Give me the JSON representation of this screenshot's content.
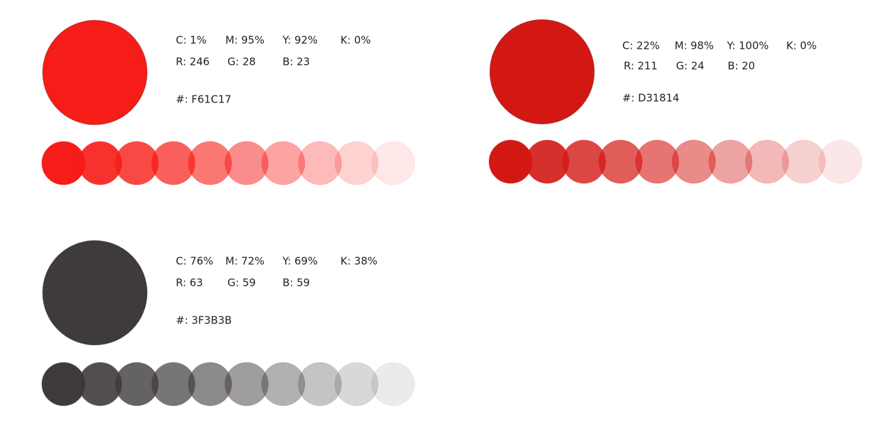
{
  "swatches": [
    {
      "color": "#F61C17",
      "cmyk": [
        "C: 1%",
        "M: 95%",
        "Y: 92%",
        "K: 0%"
      ],
      "rgb": [
        "R: 246",
        "G: 28",
        "B: 23"
      ],
      "hex": "#: F61C17"
    },
    {
      "color": "#D31814",
      "cmyk": [
        "C: 22%",
        "M: 98%",
        "Y: 100%",
        "K: 0%"
      ],
      "rgb": [
        "R: 211",
        "G: 24",
        "B: 20"
      ],
      "hex": "#: D31814"
    },
    {
      "color": "#3F3B3B",
      "cmyk": [
        "C: 76%",
        "M: 72%",
        "Y: 69%",
        "K: 38%"
      ],
      "rgb": [
        "R: 63",
        "G: 59",
        "B: 59"
      ],
      "hex": "#: 3F3B3B"
    }
  ]
}
